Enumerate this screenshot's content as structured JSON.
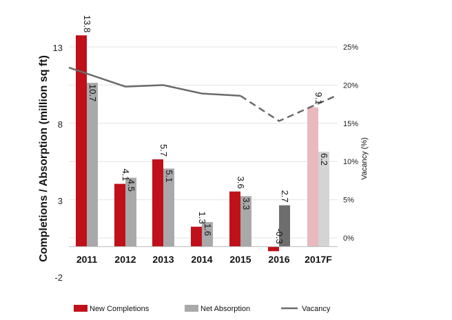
{
  "chart_data": {
    "type": "bar",
    "categories": [
      "2011",
      "2012",
      "2013",
      "2014",
      "2015",
      "2016",
      "2017F"
    ],
    "series": [
      {
        "name": "New Completions",
        "values": [
          13.8,
          4.1,
          5.7,
          1.3,
          3.6,
          -0.3,
          9.1
        ],
        "labels": [
          "13.8",
          "4.1",
          "5.7",
          "1.3",
          "3.6",
          "-0.3",
          "9.1"
        ],
        "color": "#c0101a",
        "forecast_color": "#e8b9bd"
      },
      {
        "name": "Net Absorption",
        "values": [
          10.7,
          4.5,
          5.1,
          1.6,
          3.3,
          2.7,
          6.2
        ],
        "labels": [
          "10.7",
          "4.5",
          "5.1",
          "1.6",
          "3.3",
          "2.7",
          "6.2"
        ],
        "color": "#a9a9a9",
        "highlight_color": "#6e6e6e",
        "forecast_color": "#d4d4d4"
      }
    ],
    "line_series": {
      "name": "Vacancy",
      "axis": "right",
      "values": [
        22.3,
        19.8,
        20.0,
        18.9,
        18.6,
        15.3,
        18.7
      ],
      "dashed_from_index": 4,
      "color": "#6a6a6a"
    },
    "ylabel": "Completions / Absorption (million sq ft)",
    "y2label": "Vacancy (%)",
    "yticks": [
      13,
      8,
      3,
      -2
    ],
    "ylim": [
      -2,
      13
    ],
    "y2ticks": [
      "25%",
      "20%",
      "15%",
      "10%",
      "5%",
      "0%"
    ],
    "y2lim": [
      0,
      25
    ],
    "grid": true,
    "legend_position": "bottom",
    "legend": [
      "New Completions",
      "Net Absorption",
      "Vacancy"
    ]
  }
}
